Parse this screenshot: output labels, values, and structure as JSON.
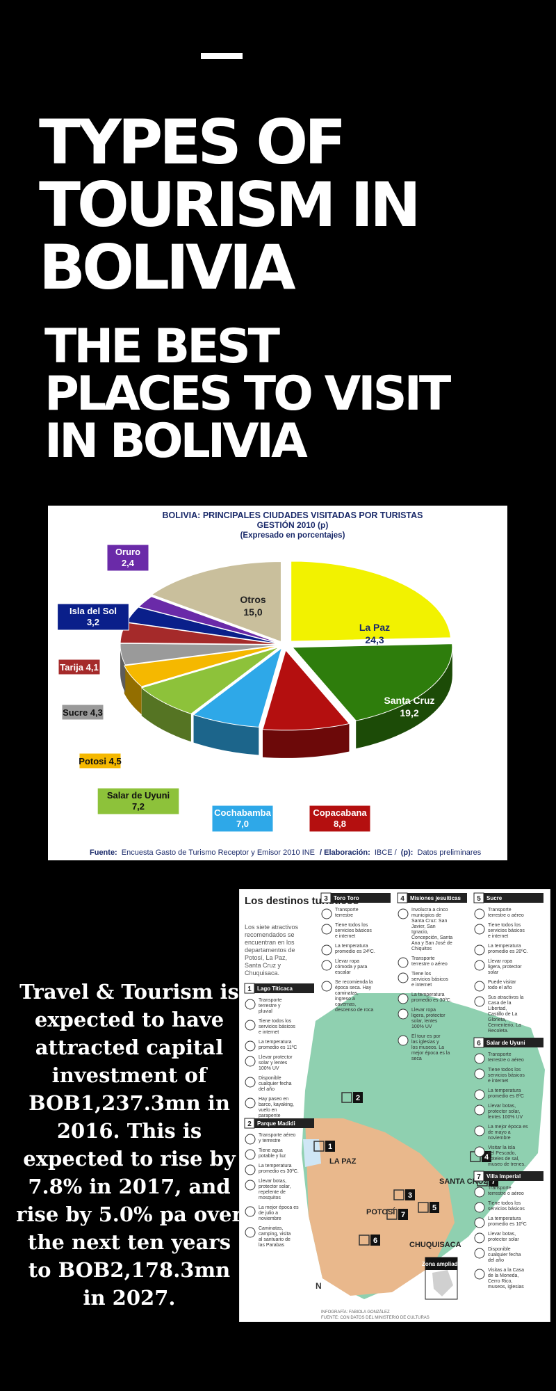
{
  "title": {
    "line1": "TYPES OF",
    "line2": "TOURISM IN",
    "line3": "BOLIVIA"
  },
  "subtitle": {
    "line1": "THE BEST",
    "line2": "PLACES TO VISIT",
    "line3": "IN BOLIVIA"
  },
  "paragraph": "Travel & Tourism is expected to have attracted capital investment of BOB1,237.3mn in 2016. This is expected to rise by 7.8% in 2017, and rise by 5.0% pa over the next ten years to BOB2,178.3mn in 2027.",
  "chart_data": {
    "type": "pie",
    "title": "BOLIVIA: PRINCIPALES CIUDADES VISITADAS POR TURISTAS",
    "subtitle": "GESTIÓN 2010 (p)",
    "subtitle2": "(Expresado en porcentajes)",
    "slices": [
      {
        "name": "La Paz",
        "value": 24.3,
        "label": "24,3",
        "color": "#f2f200"
      },
      {
        "name": "Santa Cruz",
        "value": 19.2,
        "label": "19,2",
        "color": "#2e7d0c"
      },
      {
        "name": "Copacabana",
        "value": 8.8,
        "label": "8,8",
        "color": "#b40f0f"
      },
      {
        "name": "Cochabamba",
        "value": 7.0,
        "label": "7,0",
        "color": "#2ea8e8"
      },
      {
        "name": "Salar de Uyuni",
        "value": 7.2,
        "label": "7,2",
        "color": "#8dc23a"
      },
      {
        "name": "Potosi",
        "value": 4.5,
        "label": "4,5",
        "color": "#f5b800"
      },
      {
        "name": "Sucre",
        "value": 4.3,
        "label": "4,3",
        "color": "#9a9a9a"
      },
      {
        "name": "Tarija",
        "value": 4.1,
        "label": "4,1",
        "color": "#a52a2a"
      },
      {
        "name": "Isla del Sol",
        "value": 3.2,
        "label": "3,2",
        "color": "#0a1f8a"
      },
      {
        "name": "Oruro",
        "value": 2.4,
        "label": "2,4",
        "color": "#6a2aa8"
      },
      {
        "name": "Otros",
        "value": 15.0,
        "label": "15,0",
        "color": "#c9bf9c"
      }
    ],
    "source_label": "Fuente:",
    "source": "Encuesta Gasto de Turismo Receptor y Emisor 2010 INE",
    "elaboracion_label": "/ Elaboración:",
    "elaboracion": "IBCE /",
    "p_label": "(p):",
    "p_text": "Datos preliminares"
  },
  "map": {
    "title": "Los destinos turísticos",
    "intro": "Los siete atractivos recomendados se encuentran en los departamentos de Potosí, La Paz, Santa Cruz y Chuquisaca.",
    "columns": [
      {
        "sections": [
          {
            "num": "1",
            "name": "Lago Titicaca",
            "items": [
              "Transporte terrestre y pluvial",
              "Tiene todos los servicios básicos e internet",
              "La temperatura promedio es 11ºC",
              "Llevar protector solar y lentes 100% UV",
              "Disponible cualquier fecha del año",
              "Hay paseo en barco, kayaking, vuelo en parapente"
            ]
          },
          {
            "num": "2",
            "name": "Parque Madidi",
            "items": [
              "Transporte aéreo y terrestre",
              "Tiene agua potable y luz",
              "La temperatura promedio es 30ºC.",
              "Llevar botas, protector solar, repelente de mosquitos",
              "La mejor época es de julio a noviembre",
              "Caminatas, camping, visita al santuario de las Parabas"
            ]
          }
        ]
      },
      {
        "sections": [
          {
            "num": "3",
            "name": "Toro Toro",
            "items": [
              "Transporte terrestre",
              "Tiene todos los servicios básicos e internet",
              "La temperatura promedio es 24ºC.",
              "Llevar ropa cómoda y para escalar",
              "Se recomienda la época seca. Hay caminatas, ingreso a cavernas, descenso de roca"
            ]
          }
        ]
      },
      {
        "sections": [
          {
            "num": "4",
            "name": "Misiones jesuíticas",
            "items": [
              "Involucra a cinco municipios de Santa Cruz: San Javier, San Ignacio, Concepción, Santa Ana y San José de Chiquitos",
              "Transporte terrestre o aéreo",
              "Tiene los servicios básicos e internet",
              "La temperatura promedio es 30ºC.",
              "Llevar ropa ligera, protector solar, lentes 100% UV",
              "El tour es por las iglesias y los museos. La mejor época es la seca"
            ]
          }
        ]
      },
      {
        "sections": [
          {
            "num": "5",
            "name": "Sucre",
            "items": [
              "Transporte terrestre o aéreo",
              "Tiene todos los servicios básicos e internet",
              "La temperatura promedio es 20ºC.",
              "Llevar ropa ligera, protector solar",
              "Puede visitar todo el año",
              "Sus atractivos la Casa de la Libertad, Castillo de La Glorieta, Cementerio, La Recoleta."
            ]
          },
          {
            "num": "6",
            "name": "Salar de Uyuni",
            "items": [
              "Transporte terrestre o aéreo",
              "Tiene todos los servicios básicos e internet",
              "La temperatura promedio es 8ºC",
              "Llevar botas, protector solar, lentes 100% UV",
              "La mejor época es de mayo a noviembre",
              "Visitar la isla del Pescado, hoteles de sal, museo de trenes."
            ]
          },
          {
            "num": "7",
            "name": "Villa Imperial",
            "items": [
              "Transporte terrestre o aéreo",
              "Tiene todos los servicios básicos",
              "La temperatura promedio es 10ºC",
              "Llevar botas, protector solar",
              "Disponible cualquier fecha del año",
              "Visitas a la Casa de la Moneda, Cerro Rico, museos, iglesias"
            ]
          }
        ]
      }
    ],
    "places": [
      "LA PAZ",
      "SANTA CRUZ",
      "POTOSÍ",
      "CHUQUISACA"
    ],
    "inset_label": "Zona ampliada",
    "north": "N",
    "credits_line1": "INFOGRAFÍA: FABIOLA GONZÁLEZ",
    "credits_line2": "FUENTE: CON DATOS DEL MINISTERIO DE CULTURAS"
  }
}
